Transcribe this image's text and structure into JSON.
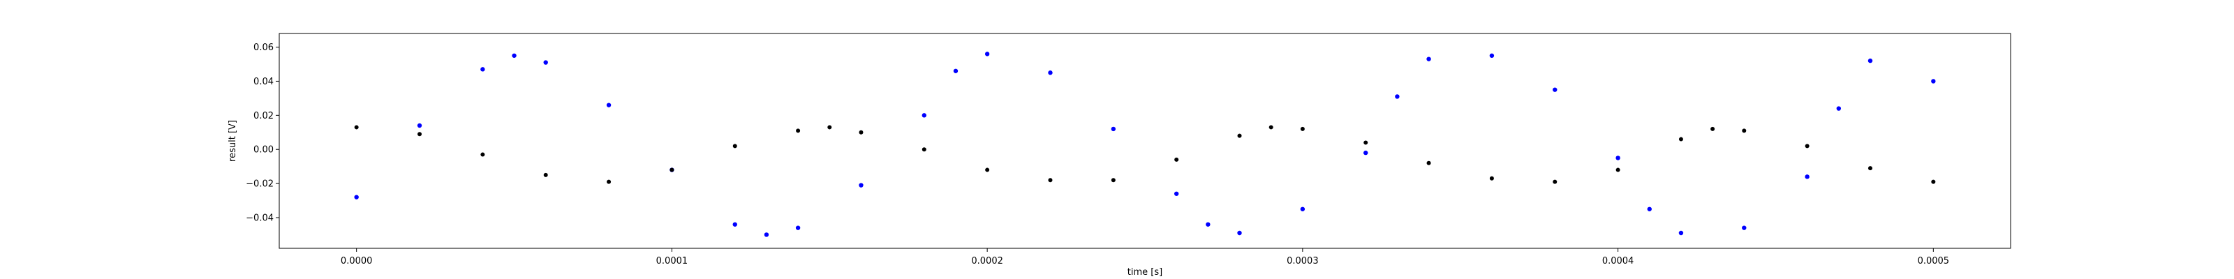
{
  "chart_data": {
    "type": "scatter",
    "xlabel": "time [s]",
    "ylabel": "result [V]",
    "xlim": [
      -2.45e-05,
      0.0005245
    ],
    "ylim": [
      -0.058,
      0.068
    ],
    "xticks": [
      0.0,
      0.0001,
      0.0002,
      0.0003,
      0.0004,
      0.0005
    ],
    "xtick_labels": [
      "0.0000",
      "0.0001",
      "0.0002",
      "0.0003",
      "0.0004",
      "0.0005"
    ],
    "yticks": [
      -0.04,
      -0.02,
      0.0,
      0.02,
      0.04,
      0.06
    ],
    "ytick_labels": [
      "−0.04",
      "−0.02",
      "0.00",
      "0.02",
      "0.04",
      "0.06"
    ],
    "grid": false,
    "series": [
      {
        "color": "#0000ff",
        "marker": "circle",
        "description_of_shape": "noisy sinusoid, amplitude about 0.053 V, period about 0.000143 s, slightly doubled track",
        "x": [
          0.0,
          2e-05,
          4e-05,
          5e-05,
          6e-05,
          8e-05,
          0.0001,
          0.00012,
          0.00013,
          0.00014,
          0.00016,
          0.00018,
          0.00019,
          0.0002,
          0.00022,
          0.00024,
          0.00026,
          0.00027,
          0.00028,
          0.0003,
          0.00032,
          0.00033,
          0.00034,
          0.00036,
          0.00038,
          0.0004,
          0.00041,
          0.00042,
          0.00044,
          0.00046,
          0.00047,
          0.00048,
          0.0005
        ],
        "y": [
          -0.028,
          0.014,
          0.047,
          0.055,
          0.051,
          0.026,
          -0.012,
          -0.044,
          -0.05,
          -0.046,
          -0.021,
          0.02,
          0.046,
          0.056,
          0.045,
          0.012,
          -0.026,
          -0.044,
          -0.049,
          -0.035,
          -0.002,
          0.031,
          0.053,
          0.055,
          0.035,
          -0.005,
          -0.035,
          -0.049,
          -0.046,
          -0.016,
          0.024,
          0.052,
          0.04
        ]
      },
      {
        "color": "#000000",
        "marker": "circle",
        "description_of_shape": "smooth low-amplitude sinusoid, amplitude about 0.016 V, period about 0.000143 s, lagging the blue series",
        "x": [
          0.0,
          2e-05,
          4e-05,
          6e-05,
          8e-05,
          0.0001,
          0.00012,
          0.00014,
          0.00015,
          0.00016,
          0.00018,
          0.0002,
          0.00022,
          0.00024,
          0.00026,
          0.00028,
          0.00029,
          0.0003,
          0.00032,
          0.00034,
          0.00036,
          0.00038,
          0.0004,
          0.00042,
          0.00043,
          0.00044,
          0.00046,
          0.00048,
          0.0005
        ],
        "y": [
          0.013,
          0.009,
          -0.003,
          -0.015,
          -0.019,
          -0.012,
          0.002,
          0.011,
          0.013,
          0.01,
          0.0,
          -0.012,
          -0.018,
          -0.018,
          -0.006,
          0.008,
          0.013,
          0.012,
          0.004,
          -0.008,
          -0.017,
          -0.019,
          -0.012,
          0.006,
          0.012,
          0.011,
          0.002,
          -0.011,
          -0.019
        ]
      }
    ]
  }
}
